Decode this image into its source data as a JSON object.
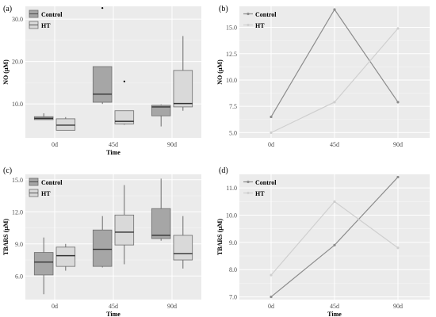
{
  "chart_data": [
    {
      "panel": "(a)",
      "type": "box",
      "ylabel": "NO (µM)",
      "xlabel": "Time",
      "categories": [
        "0d",
        "45d",
        "90d"
      ],
      "yticks": [
        "10.0",
        "20.0",
        "30.0"
      ],
      "ytick_values": [
        10,
        20,
        30
      ],
      "ylim": [
        2,
        33
      ],
      "legend": "top-left",
      "series": [
        {
          "name": "Control",
          "color": "#a6a6a6",
          "boxes": [
            {
              "min": 6.3,
              "q1": 6.3,
              "median": 6.6,
              "q3": 7.0,
              "max": 7.8
            },
            {
              "min": 10.0,
              "q1": 10.4,
              "median": 12.3,
              "q3": 18.8,
              "max": 18.8,
              "outliers": [
                32.6
              ]
            },
            {
              "min": 4.7,
              "q1": 7.2,
              "median": 9.3,
              "q3": 9.7,
              "max": 9.9
            }
          ]
        },
        {
          "name": "HT",
          "color": "#d9d9d9",
          "boxes": [
            {
              "min": 3.8,
              "q1": 3.8,
              "median": 5.0,
              "q3": 6.5,
              "max": 6.9
            },
            {
              "min": 5.1,
              "q1": 5.3,
              "median": 5.9,
              "q3": 8.4,
              "max": 8.4,
              "outliers": [
                15.3
              ]
            },
            {
              "min": 8.4,
              "q1": 9.3,
              "median": 10.1,
              "q3": 17.9,
              "max": 26.0
            }
          ]
        }
      ]
    },
    {
      "panel": "(b)",
      "type": "line",
      "ylabel": "NO (µM)",
      "xlabel": "",
      "categories": [
        "0d",
        "45d",
        "90d"
      ],
      "yticks": [
        "5.0",
        "7.5",
        "10.0",
        "12.5",
        "15.0"
      ],
      "ytick_values": [
        5.0,
        7.5,
        10.0,
        12.5,
        15.0
      ],
      "ylim": [
        4.5,
        17.0
      ],
      "legend": "top-left",
      "series": [
        {
          "name": "Control",
          "color": "#8c8c8c",
          "values": [
            6.5,
            16.7,
            7.9
          ]
        },
        {
          "name": "HT",
          "color": "#cfcfcf",
          "values": [
            5.0,
            7.9,
            14.9
          ]
        }
      ]
    },
    {
      "panel": "(c)",
      "type": "box",
      "ylabel": "TBARS (µM)",
      "xlabel": "Time",
      "categories": [
        "0d",
        "45d",
        "90d"
      ],
      "yticks": [
        "6.0",
        "9.0",
        "12.0",
        "15.0"
      ],
      "ytick_values": [
        6.0,
        9.0,
        12.0,
        15.0
      ],
      "ylim": [
        3.8,
        15.5
      ],
      "legend": "top-left",
      "series": [
        {
          "name": "Control",
          "color": "#a6a6a6",
          "boxes": [
            {
              "min": 4.3,
              "q1": 6.1,
              "median": 7.3,
              "q3": 8.2,
              "max": 9.6
            },
            {
              "min": 6.8,
              "q1": 6.9,
              "median": 8.5,
              "q3": 10.3,
              "max": 11.6
            },
            {
              "min": 9.3,
              "q1": 9.5,
              "median": 9.8,
              "q3": 12.3,
              "max": 15.1
            }
          ]
        },
        {
          "name": "HT",
          "color": "#d9d9d9",
          "boxes": [
            {
              "min": 6.5,
              "q1": 6.9,
              "median": 7.9,
              "q3": 8.7,
              "max": 9.0
            },
            {
              "min": 7.1,
              "q1": 8.9,
              "median": 10.1,
              "q3": 11.7,
              "max": 14.5
            },
            {
              "min": 6.7,
              "q1": 7.5,
              "median": 8.1,
              "q3": 9.8,
              "max": 11.6
            }
          ]
        }
      ]
    },
    {
      "panel": "(d)",
      "type": "line",
      "ylabel": "TBARS (µM)",
      "xlabel": "Time",
      "categories": [
        "0d",
        "45d",
        "90d"
      ],
      "yticks": [
        "7.0",
        "8.0",
        "9.0",
        "10.0",
        "11.0"
      ],
      "ytick_values": [
        7.0,
        8.0,
        9.0,
        10.0,
        11.0
      ],
      "ylim": [
        6.9,
        11.5
      ],
      "legend": "top-left",
      "series": [
        {
          "name": "Control",
          "color": "#8c8c8c",
          "values": [
            7.0,
            8.9,
            11.4
          ]
        },
        {
          "name": "HT",
          "color": "#cfcfcf",
          "values": [
            7.8,
            10.5,
            8.8
          ]
        }
      ]
    }
  ]
}
